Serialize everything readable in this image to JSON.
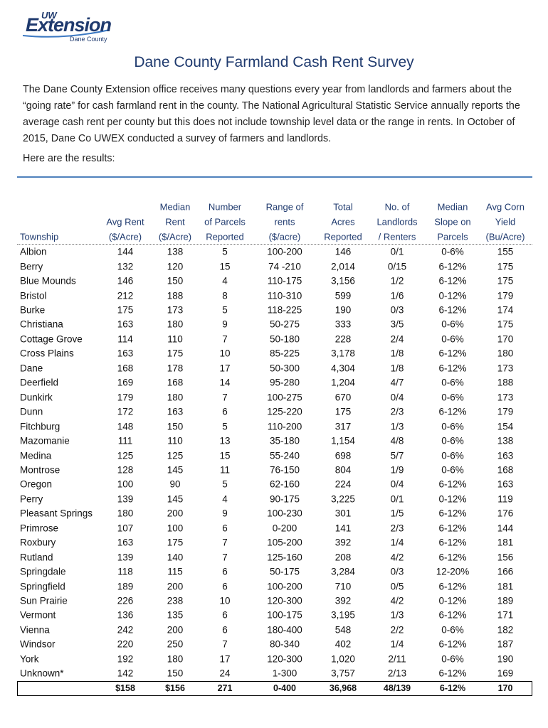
{
  "logo": {
    "org": "UW",
    "name": "Extension",
    "sub": "Dane County"
  },
  "title": "Dane County Farmland Cash Rent Survey",
  "intro": "The Dane County Extension office receives many questions  every year from landlords and farmers about the “going rate” for cash farmland rent in the county. The National Agricultural Statistic Service annually reports the average cash rent per county but this does not include township level data or the range in rents. In October of 2015, Dane Co UWEX conducted a survey of farmers and landlords.",
  "lead": "Here are the results:",
  "table": {
    "headers": [
      [
        "Township"
      ],
      [
        "Avg Rent",
        "($/Acre)"
      ],
      [
        "Median",
        "Rent",
        "($/Acre)"
      ],
      [
        "Number",
        "of Parcels",
        "Reported"
      ],
      [
        "Range of",
        "rents",
        "($/acre)"
      ],
      [
        "Total",
        "Acres",
        "Reported"
      ],
      [
        "No. of",
        "Landlords",
        "/ Renters"
      ],
      [
        "Median",
        "Slope on",
        "Parcels"
      ],
      [
        "Avg Corn",
        "Yield",
        "(Bu/Acre)"
      ]
    ],
    "rows": [
      [
        "Albion",
        "144",
        "138",
        "5",
        "100-200",
        "146",
        "0/1",
        "0-6%",
        "155"
      ],
      [
        "Berry",
        "132",
        "120",
        "15",
        "74 -210",
        "2,014",
        "0/15",
        "6-12%",
        "175"
      ],
      [
        "Blue Mounds",
        "146",
        "150",
        "4",
        "110-175",
        "3,156",
        "1/2",
        "6-12%",
        "175"
      ],
      [
        "Bristol",
        "212",
        "188",
        "8",
        "110-310",
        "599",
        "1/6",
        "0-12%",
        "179"
      ],
      [
        "Burke",
        "175",
        "173",
        "5",
        "118-225",
        "190",
        "0/3",
        "6-12%",
        "174"
      ],
      [
        "Christiana",
        "163",
        "180",
        "9",
        "50-275",
        "333",
        "3/5",
        "0-6%",
        "175"
      ],
      [
        "Cottage Grove",
        "114",
        "110",
        "7",
        "50-180",
        "228",
        "2/4",
        "0-6%",
        "170"
      ],
      [
        "Cross Plains",
        "163",
        "175",
        "10",
        "85-225",
        "3,178",
        "1/8",
        "6-12%",
        "180"
      ],
      [
        "Dane",
        "168",
        "178",
        "17",
        "50-300",
        "4,304",
        "1/8",
        "6-12%",
        "173"
      ],
      [
        "Deerfield",
        "169",
        "168",
        "14",
        "95-280",
        "1,204",
        "4/7",
        "0-6%",
        "188"
      ],
      [
        "Dunkirk",
        "179",
        "180",
        "7",
        "100-275",
        "670",
        "0/4",
        "0-6%",
        "173"
      ],
      [
        "Dunn",
        "172",
        "163",
        "6",
        "125-220",
        "175",
        "2/3",
        "6-12%",
        "179"
      ],
      [
        "Fitchburg",
        "148",
        "150",
        "5",
        "110-200",
        "317",
        "1/3",
        "0-6%",
        "154"
      ],
      [
        "Mazomanie",
        "111",
        "110",
        "13",
        "35-180",
        "1,154",
        "4/8",
        "0-6%",
        "138"
      ],
      [
        "Medina",
        "125",
        "125",
        "15",
        "55-240",
        "698",
        "5/7",
        "0-6%",
        "163"
      ],
      [
        "Montrose",
        "128",
        "145",
        "11",
        "76-150",
        "804",
        "1/9",
        "0-6%",
        "168"
      ],
      [
        "Oregon",
        "100",
        "90",
        "5",
        "62-160",
        "224",
        "0/4",
        "6-12%",
        "163"
      ],
      [
        "Perry",
        "139",
        "145",
        "4",
        "90-175",
        "3,225",
        "0/1",
        "0-12%",
        "119"
      ],
      [
        "Pleasant Springs",
        "180",
        "200",
        "9",
        "100-230",
        "301",
        "1/5",
        "6-12%",
        "176"
      ],
      [
        "Primrose",
        "107",
        "100",
        "6",
        "0-200",
        "141",
        "2/3",
        "6-12%",
        "144"
      ],
      [
        "Roxbury",
        "163",
        "175",
        "7",
        "105-200",
        "392",
        "1/4",
        "6-12%",
        "181"
      ],
      [
        "Rutland",
        "139",
        "140",
        "7",
        "125-160",
        "208",
        "4/2",
        "6-12%",
        "156"
      ],
      [
        "Springdale",
        "118",
        "115",
        "6",
        "50-175",
        "3,284",
        "0/3",
        "12-20%",
        "166"
      ],
      [
        "Springfield",
        "189",
        "200",
        "6",
        "100-200",
        "710",
        "0/5",
        "6-12%",
        "181"
      ],
      [
        "Sun Prairie",
        "226",
        "238",
        "10",
        "120-300",
        "392",
        "4/2",
        "0-12%",
        "189"
      ],
      [
        "Vermont",
        "136",
        "135",
        "6",
        "100-175",
        "3,195",
        "1/3",
        "6-12%",
        "171"
      ],
      [
        "Vienna",
        "242",
        "200",
        "6",
        "180-400",
        "548",
        "2/2",
        "0-6%",
        "182"
      ],
      [
        "Windsor",
        "220",
        "250",
        "7",
        "80-340",
        "402",
        "1/4",
        "6-12%",
        "187"
      ],
      [
        "York",
        "192",
        "180",
        "17",
        "120-300",
        "1,020",
        "2/11",
        "0-6%",
        "190"
      ],
      [
        "Unknown*",
        "142",
        "150",
        "24",
        "1-300",
        "3,757",
        "2/13",
        "6-12%",
        "169"
      ]
    ],
    "total": [
      "$158",
      "$156",
      "271",
      "0-400",
      "36,968",
      "48/139",
      "6-12%",
      "170"
    ]
  }
}
